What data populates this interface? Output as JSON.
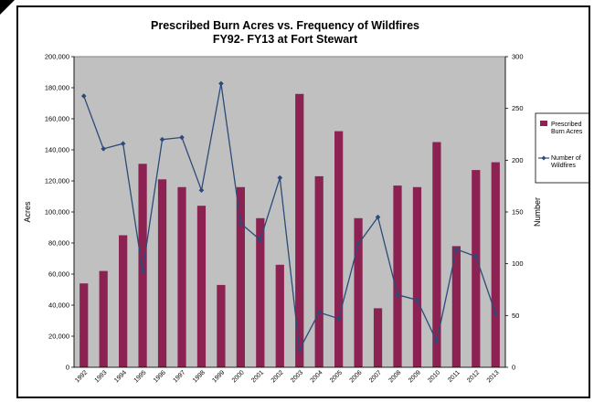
{
  "chart_data": {
    "type": "bar+line",
    "title": "Prescribed Burn Acres vs. Frequency of Wildfires",
    "subtitle": "FY92- FY13 at Fort Stewart",
    "ylabel": "Acres",
    "y2label": "Number",
    "xlabel": "",
    "categories": [
      "1992",
      "1993",
      "1994",
      "1995",
      "1996",
      "1997",
      "1998",
      "1999",
      "2000",
      "2001",
      "2002",
      "2003",
      "2004",
      "2005",
      "2006",
      "2007",
      "2008",
      "2009",
      "2010",
      "2011",
      "2012",
      "2013"
    ],
    "ylim": [
      0,
      200000
    ],
    "y2lim": [
      0,
      300
    ],
    "yticks": [
      "0",
      "20,000",
      "40,000",
      "60,000",
      "80,000",
      "100,000",
      "120,000",
      "140,000",
      "160,000",
      "180,000",
      "200,000"
    ],
    "y2ticks": [
      "0",
      "50",
      "100",
      "150",
      "200",
      "250",
      "300"
    ],
    "grid": false,
    "legend_position": "right",
    "colors": {
      "bar": "#8B2252",
      "line": "#2C4A7A",
      "plot_bg": "#C0C0C0"
    },
    "series": [
      {
        "name": "Prescribed Burn Acres",
        "kind": "bar",
        "axis": "left",
        "values": [
          54000,
          62000,
          85000,
          131000,
          121000,
          116000,
          104000,
          53000,
          116000,
          96000,
          66000,
          176000,
          123000,
          152000,
          96000,
          38000,
          117000,
          116000,
          145000,
          78000,
          127000,
          132000
        ]
      },
      {
        "name": "Number of Wildfires",
        "kind": "line",
        "axis": "right",
        "values": [
          262,
          211,
          216,
          93,
          220,
          222,
          171,
          274,
          139,
          123,
          183,
          17,
          53,
          47,
          119,
          145,
          70,
          65,
          25,
          114,
          107,
          52
        ]
      }
    ],
    "legend": [
      {
        "label": "Prescribed Burn Acres"
      },
      {
        "label": "Number of Wildfires"
      }
    ]
  }
}
